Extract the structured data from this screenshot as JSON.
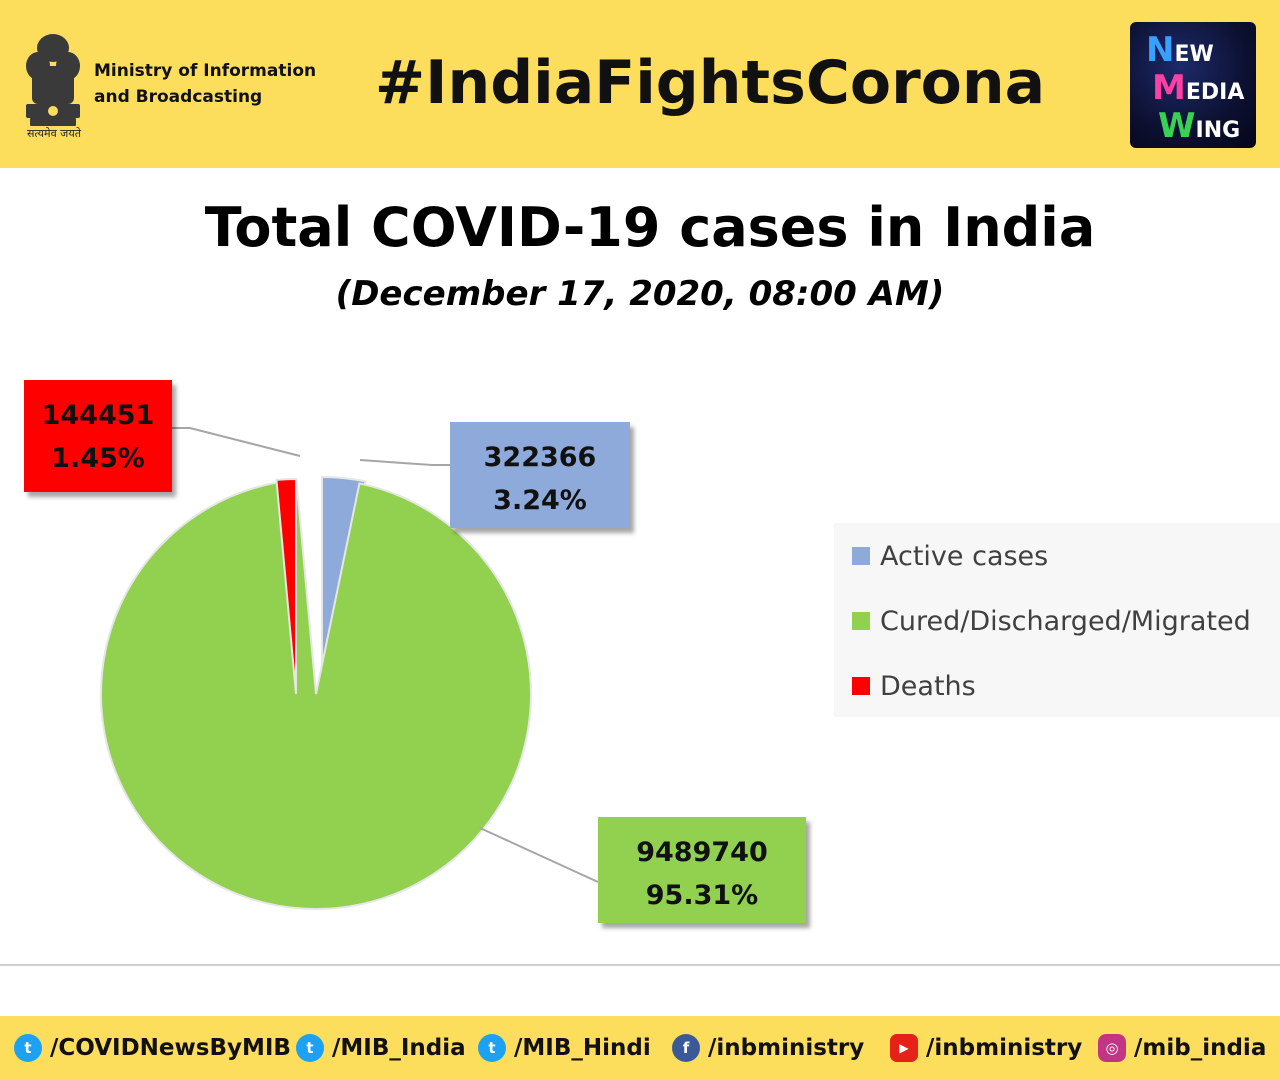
{
  "header": {
    "ministry_line1": "Ministry of Information",
    "ministry_line2": "and Broadcasting",
    "motto": "सत्यमेव जयते",
    "hashtag": "#IndiaFightsCorona",
    "logo_lines": [
      {
        "initial": "N",
        "rest": "EW",
        "color": "#3aa0ff"
      },
      {
        "initial": "M",
        "rest": "EDIA",
        "color": "#ff3fa4"
      },
      {
        "initial": "W",
        "rest": "ING",
        "color": "#39d353"
      }
    ]
  },
  "chart_data": {
    "type": "pie",
    "title": "Total COVID-19 cases in India",
    "subtitle": "(December 17, 2020, 08:00 AM)",
    "legend_position": "right",
    "slices": [
      {
        "label": "Active cases",
        "value": 322366,
        "percent_label": "3.24%",
        "color": "#8eaadb"
      },
      {
        "label": "Cured/Discharged/Migrated",
        "value": 9489740,
        "percent_label": "95.31%",
        "color": "#92d050"
      },
      {
        "label": "Deaths",
        "value": 144451,
        "percent_label": "1.45%",
        "color": "#ff0000"
      }
    ]
  },
  "footer": {
    "handles": [
      {
        "platform": "twitter-icon",
        "text": "/COVIDNewsByMIB",
        "color": "#1da1f2",
        "glyph": "t"
      },
      {
        "platform": "twitter-icon",
        "text": "/MIB_India",
        "color": "#1da1f2",
        "glyph": "t"
      },
      {
        "platform": "twitter-icon",
        "text": "/MIB_Hindi",
        "color": "#1da1f2",
        "glyph": "t"
      },
      {
        "platform": "facebook-icon",
        "text": "/inbministry",
        "color": "#3b5998",
        "glyph": "f"
      },
      {
        "platform": "youtube-icon",
        "text": "/inbministry",
        "color": "#e62117",
        "glyph": "▶"
      },
      {
        "platform": "instagram-icon",
        "text": "/mib_india",
        "color": "#c13584",
        "glyph": "◎"
      }
    ]
  }
}
